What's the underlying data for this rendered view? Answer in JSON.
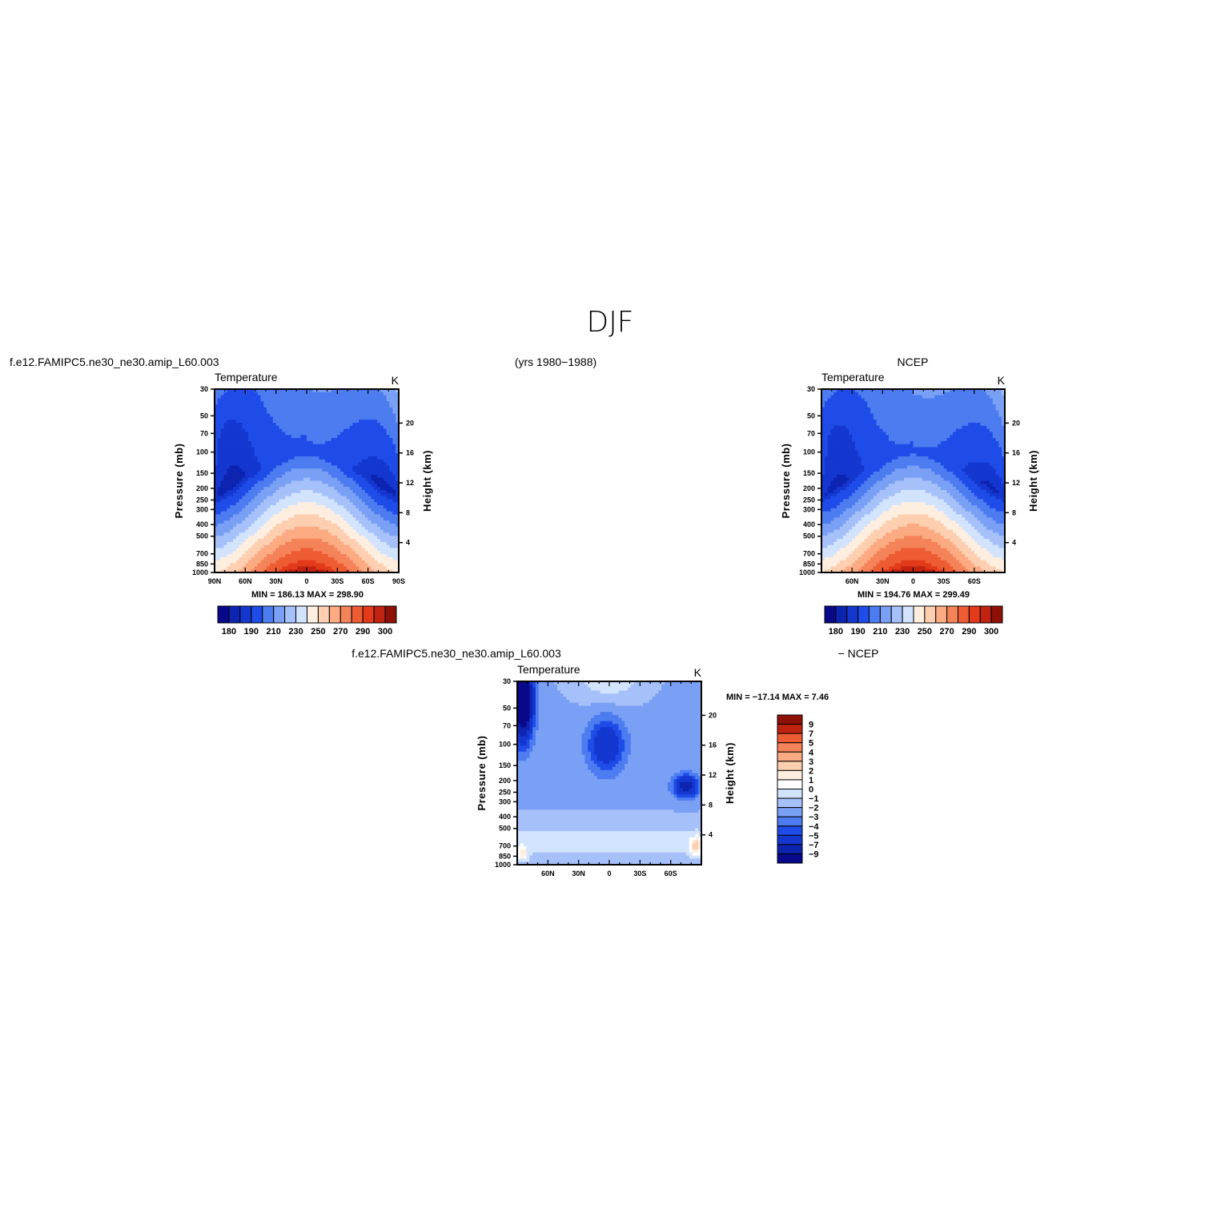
{
  "figure": {
    "title": "DJF",
    "model_name": "f.e12.FAMIPC5.ne30_ne30.amip_L60.003",
    "years": "(yrs 1980−1988)",
    "obs_name": "NCEP",
    "diff_left_title": "f.e12.FAMIPC5.ne30_ne30.amip_L60.003",
    "diff_right_title": "− NCEP"
  },
  "colors": {
    "temperature_scale": [
      "#08088a",
      "#0c24b0",
      "#1437d0",
      "#1f4ce8",
      "#4c7cf0",
      "#7aa0f5",
      "#a6c0fa",
      "#d2e3fd",
      "#fdeee0",
      "#fdcfb0",
      "#fbaa82",
      "#f5835a",
      "#ee5c33",
      "#e23a1b",
      "#c02410",
      "#8e1006"
    ],
    "difference_scale": [
      "#08088a",
      "#0c24b0",
      "#1437d0",
      "#1f4ce8",
      "#4c7cf0",
      "#7aa0f5",
      "#a6c0fa",
      "#d2e3fd",
      "#ffffff",
      "#fdeee0",
      "#fdcfb0",
      "#fbaa82",
      "#f5835a",
      "#ee5c33",
      "#c02410",
      "#8e1006"
    ]
  },
  "chart_data": [
    {
      "type": "heatmap",
      "id": "model",
      "title": "Temperature",
      "units": "K",
      "ylabel": "Pressure (mb)",
      "y2label": "Height (km)",
      "x_ticks": [
        "90N",
        "60N",
        "30N",
        "0",
        "30S",
        "60S",
        "90S"
      ],
      "x_tick_values": [
        90,
        60,
        30,
        0,
        -30,
        -60,
        -90
      ],
      "p_ticks": [
        "30",
        "50",
        "70",
        "100",
        "150",
        "200",
        "250",
        "300",
        "400",
        "500",
        "700",
        "850",
        "1000"
      ],
      "p_tick_values": [
        30,
        50,
        70,
        100,
        150,
        200,
        250,
        300,
        400,
        500,
        700,
        850,
        1000
      ],
      "h_ticks": [
        "4",
        "8",
        "12",
        "16",
        "20"
      ],
      "h_tick_values": [
        4,
        8,
        12,
        16,
        20
      ],
      "xlim": [
        90,
        -90
      ],
      "plim": [
        30,
        1000
      ],
      "yscale": "log",
      "stats": "MIN = 186.13   MAX = 298.90",
      "min": 186.13,
      "max": 298.9,
      "colorbar": {
        "labels": [
          "180",
          "190",
          "210",
          "230",
          "250",
          "270",
          "290",
          "300"
        ]
      }
    },
    {
      "type": "heatmap",
      "id": "obs",
      "title": "Temperature",
      "units": "K",
      "ylabel": "Pressure (mb)",
      "y2label": "Height (km)",
      "x_ticks": [
        "60N",
        "30N",
        "0",
        "30S",
        "60S"
      ],
      "x_tick_values": [
        60,
        30,
        0,
        -30,
        -60
      ],
      "p_ticks": [
        "30",
        "50",
        "70",
        "100",
        "150",
        "200",
        "250",
        "300",
        "400",
        "500",
        "700",
        "850",
        "1000"
      ],
      "p_tick_values": [
        30,
        50,
        70,
        100,
        150,
        200,
        250,
        300,
        400,
        500,
        700,
        850,
        1000
      ],
      "h_ticks": [
        "4",
        "8",
        "12",
        "16",
        "20"
      ],
      "h_tick_values": [
        4,
        8,
        12,
        16,
        20
      ],
      "xlim": [
        90,
        -90
      ],
      "plim": [
        30,
        1000
      ],
      "yscale": "log",
      "stats": "MIN = 194.76   MAX = 299.49",
      "min": 194.76,
      "max": 299.49,
      "colorbar": {
        "labels": [
          "180",
          "190",
          "210",
          "230",
          "250",
          "270",
          "290",
          "300"
        ]
      }
    },
    {
      "type": "heatmap",
      "id": "diff",
      "title": "Temperature",
      "units": "K",
      "ylabel": "Pressure (mb)",
      "y2label": "Height (km)",
      "x_ticks": [
        "60N",
        "30N",
        "0",
        "30S",
        "60S"
      ],
      "x_tick_values": [
        60,
        30,
        0,
        -30,
        -60
      ],
      "p_ticks": [
        "30",
        "50",
        "70",
        "100",
        "150",
        "200",
        "250",
        "300",
        "400",
        "500",
        "700",
        "850",
        "1000"
      ],
      "p_tick_values": [
        30,
        50,
        70,
        100,
        150,
        200,
        250,
        300,
        400,
        500,
        700,
        850,
        1000
      ],
      "h_ticks": [
        "4",
        "8",
        "12",
        "16",
        "20"
      ],
      "h_tick_values": [
        4,
        8,
        12,
        16,
        20
      ],
      "xlim": [
        90,
        -90
      ],
      "plim": [
        30,
        1000
      ],
      "yscale": "log",
      "stats": "MIN = −17.14   MAX =    7.46",
      "min": -17.14,
      "max": 7.46,
      "colorbar": {
        "labels": [
          "9",
          "7",
          "5",
          "4",
          "3",
          "2",
          "1",
          "0",
          "−1",
          "−2",
          "−3",
          "−4",
          "−5",
          "−7",
          "−9"
        ]
      }
    }
  ]
}
